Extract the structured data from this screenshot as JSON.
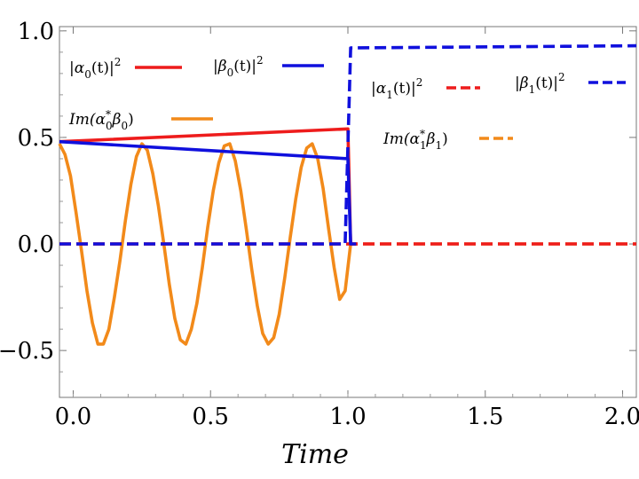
{
  "chart_data": {
    "type": "line",
    "title": "",
    "xlabel": "Time",
    "ylabel": "",
    "xlim": [
      -0.05,
      2.05
    ],
    "ylim": [
      -0.72,
      1.02
    ],
    "xticks": [
      {
        "v": 0.0,
        "label": "0.0"
      },
      {
        "v": 0.5,
        "label": "0.5"
      },
      {
        "v": 1.0,
        "label": "1.0"
      },
      {
        "v": 1.5,
        "label": "1.5"
      },
      {
        "v": 2.0,
        "label": "2.0"
      }
    ],
    "yticks": [
      {
        "v": -0.5,
        "label": "−0.5"
      },
      {
        "v": 0.0,
        "label": "0.0"
      },
      {
        "v": 0.5,
        "label": "0.5"
      },
      {
        "v": 1.0,
        "label": "1.0"
      }
    ],
    "series": [
      {
        "id": "alpha0",
        "name": "|α₀(t)|²",
        "color": "#ee1c1c",
        "dash": false,
        "x": [
          -0.05,
          1.0,
          1.01,
          1.03
        ],
        "y": [
          0.48,
          0.54,
          0.0,
          0.0
        ]
      },
      {
        "id": "beta0",
        "name": "|β₀(t)|²",
        "color": "#1010dd",
        "dash": false,
        "x": [
          -0.05,
          1.0,
          1.01,
          1.03
        ],
        "y": [
          0.48,
          0.4,
          0.0,
          0.0
        ]
      },
      {
        "id": "im0",
        "name": "Im(α₀*β₀)",
        "color": "#f28a1a",
        "dash": false,
        "x": [
          -0.05,
          -0.03,
          -0.01,
          0.01,
          0.03,
          0.05,
          0.07,
          0.09,
          0.11,
          0.13,
          0.15,
          0.17,
          0.19,
          0.21,
          0.23,
          0.25,
          0.27,
          0.29,
          0.31,
          0.33,
          0.35,
          0.37,
          0.39,
          0.41,
          0.43,
          0.45,
          0.47,
          0.49,
          0.51,
          0.53,
          0.55,
          0.57,
          0.59,
          0.61,
          0.63,
          0.65,
          0.67,
          0.69,
          0.71,
          0.73,
          0.75,
          0.77,
          0.79,
          0.81,
          0.83,
          0.85,
          0.87,
          0.89,
          0.91,
          0.93,
          0.95,
          0.97,
          0.99,
          1.01,
          1.03
        ],
        "y": [
          0.47,
          0.42,
          0.32,
          0.15,
          -0.03,
          -0.22,
          -0.37,
          -0.47,
          -0.47,
          -0.4,
          -0.25,
          -0.08,
          0.11,
          0.28,
          0.41,
          0.47,
          0.44,
          0.33,
          0.18,
          0.0,
          -0.19,
          -0.35,
          -0.45,
          -0.47,
          -0.4,
          -0.28,
          -0.11,
          0.08,
          0.25,
          0.38,
          0.46,
          0.47,
          0.39,
          0.25,
          0.07,
          -0.12,
          -0.29,
          -0.42,
          -0.47,
          -0.44,
          -0.33,
          -0.16,
          0.03,
          0.21,
          0.36,
          0.45,
          0.47,
          0.4,
          0.26,
          0.07,
          -0.11,
          -0.26,
          -0.22,
          0.0,
          0.0
        ]
      },
      {
        "id": "alpha1",
        "name": "|α₁(t)|²",
        "color": "#ee1c1c",
        "dash": true,
        "x": [
          -0.05,
          2.05
        ],
        "y": [
          0.0,
          0.0
        ]
      },
      {
        "id": "beta1",
        "name": "|β₁(t)|²",
        "color": "#1010dd",
        "dash": true,
        "x": [
          -0.05,
          0.99,
          1.01,
          2.05
        ],
        "y": [
          0.0,
          0.0,
          0.92,
          0.93
        ]
      },
      {
        "id": "im1",
        "name": "Im(α₁*β₁)",
        "color": "#f28a1a",
        "dash": true,
        "x": [
          -0.05,
          2.05
        ],
        "y": [
          0.0,
          0.0
        ]
      }
    ],
    "legend": [
      {
        "series": "alpha0",
        "base": "|α",
        "sub": "0",
        "mid": "(t)|",
        "sup": "2",
        "tail": "",
        "italic_prefix": ""
      },
      {
        "series": "beta0",
        "base": "|β",
        "sub": "0",
        "mid": "(t)|",
        "sup": "2",
        "tail": "",
        "italic_prefix": ""
      },
      {
        "series": "im0",
        "italic_prefix": "Im",
        "base": "(α",
        "sup": "*",
        "sub": "0",
        "mid": "β",
        "sub2": "0",
        "tail": ")"
      },
      {
        "series": "alpha1",
        "base": "|α",
        "sub": "1",
        "mid": "(t)|",
        "sup": "2",
        "tail": "",
        "italic_prefix": ""
      },
      {
        "series": "beta1",
        "base": "|β",
        "sub": "1",
        "mid": "(t)|",
        "sup": "2",
        "tail": "",
        "italic_prefix": ""
      },
      {
        "series": "im1",
        "italic_prefix": "Im",
        "base": "(α",
        "sup": "*",
        "sub": "1",
        "mid": "β",
        "sub2": "1",
        "tail": ")"
      }
    ]
  }
}
